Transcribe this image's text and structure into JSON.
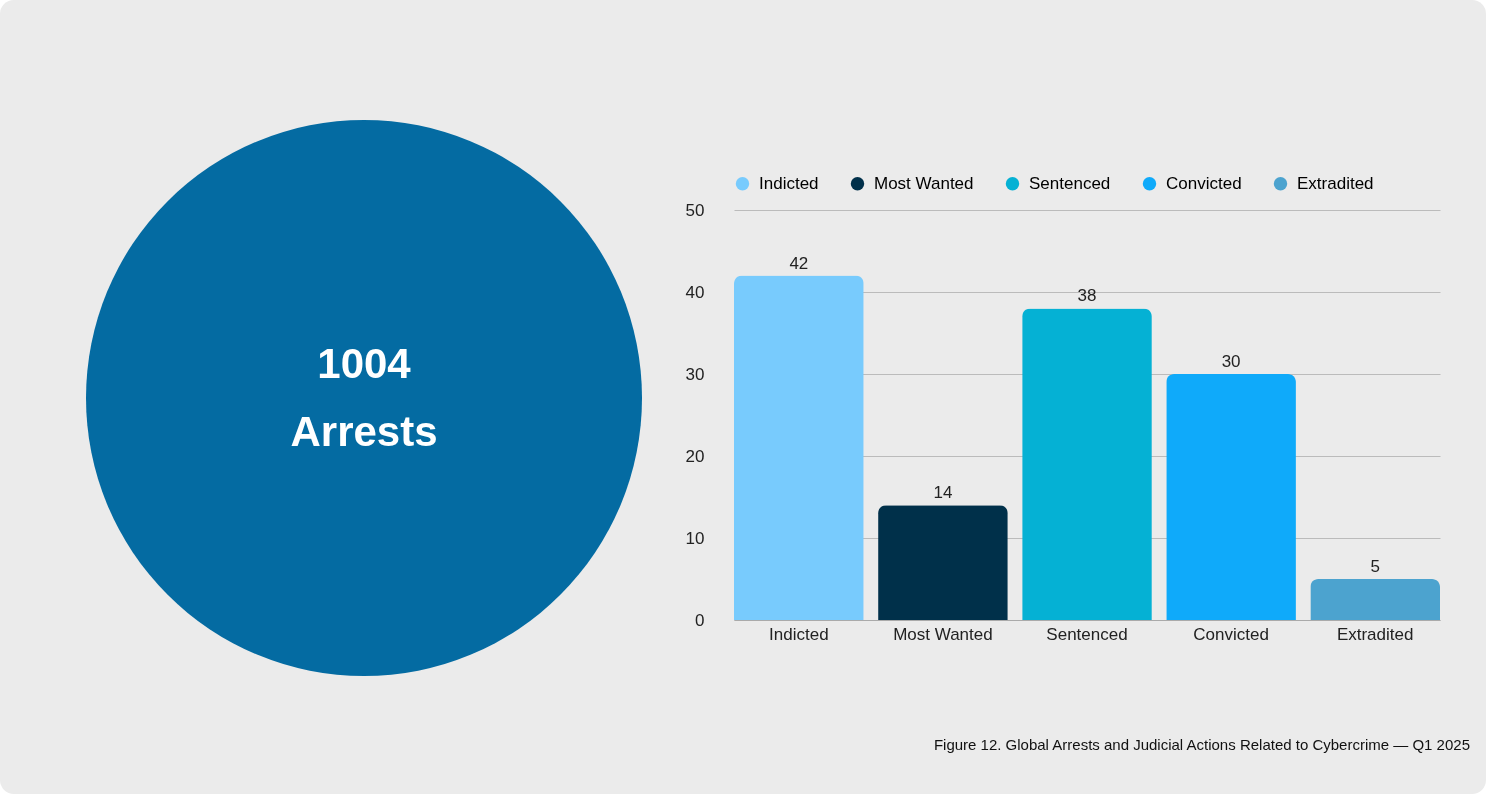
{
  "chart_data": [
    {
      "type": "other",
      "annotations": [
        "1004",
        "Arrests"
      ]
    },
    {
      "type": "bar",
      "categories": [
        "Indicted",
        "Most Wanted",
        "Sentenced",
        "Convicted",
        "Extradited"
      ],
      "stacked": true,
      "series": [
        {
          "name": "Indicted",
          "color": "#78cbfd",
          "values": [
            42,
            null,
            null,
            null,
            null
          ]
        },
        {
          "name": "Most Wanted",
          "color": "#00304a",
          "values": [
            null,
            14,
            null,
            null,
            null
          ]
        },
        {
          "name": "Sentenced",
          "color": "#05b1d4",
          "values": [
            null,
            null,
            38,
            null,
            null
          ]
        },
        {
          "name": "Convicted",
          "color": "#0faafa",
          "values": [
            null,
            null,
            null,
            30,
            null
          ]
        },
        {
          "name": "Extradited",
          "color": "#4ca3cf",
          "values": [
            null,
            null,
            null,
            null,
            5
          ]
        }
      ],
      "ylim": [
        0,
        50
      ],
      "yticks": [
        0,
        10,
        20,
        30,
        40,
        50
      ],
      "grid": "y",
      "legend": "top",
      "data_labels": true,
      "annotations": [
        "Figure 12. Global Arrests and Judicial Actions Related to Cybercrime — Q1 2025"
      ]
    }
  ]
}
